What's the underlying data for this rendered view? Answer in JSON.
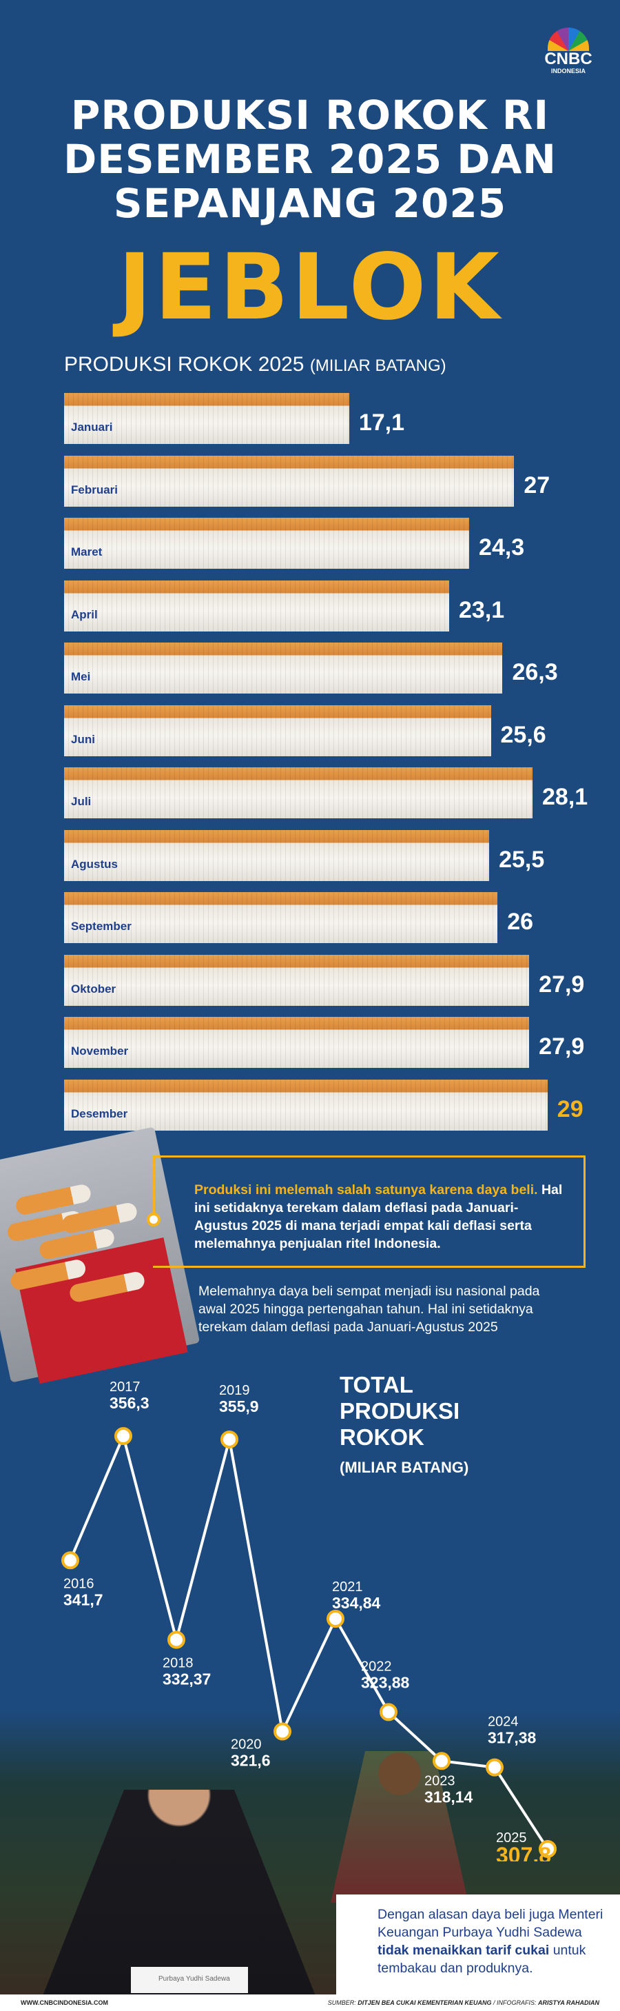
{
  "logo": {
    "brand": "CNBC",
    "sub": "INDONESIA"
  },
  "header": {
    "title_lines": [
      "PRODUKSI ROKOK RI",
      "DESEMBER 2025 DAN",
      "SEPANJANG 2025"
    ],
    "highlight": "JEBLOK"
  },
  "colors": {
    "background": "#1d4a7e",
    "accent": "#f5b41c",
    "text_blue": "#1f3f8a"
  },
  "chart_data": [
    {
      "type": "bar",
      "orientation": "horizontal",
      "title": "PRODUKSI ROKOK 2025",
      "unit": "(MILIAR BATANG)",
      "categories": [
        "Januari",
        "Februari",
        "Maret",
        "April",
        "Mei",
        "Juni",
        "Juli",
        "Agustus",
        "September",
        "Oktober",
        "November",
        "Desember"
      ],
      "values": [
        17.1,
        27,
        24.3,
        23.1,
        26.3,
        25.6,
        28.1,
        25.5,
        26,
        27.9,
        27.9,
        29
      ],
      "value_labels": [
        "17,1",
        "27",
        "24,3",
        "23,1",
        "26,3",
        "25,6",
        "28,1",
        "25,5",
        "26",
        "27,9",
        "27,9",
        "29"
      ],
      "highlight": "Desember"
    },
    {
      "type": "line",
      "title": "TOTAL PRODUKSI ROKOK",
      "unit": "(MILIAR BATANG)",
      "x": [
        "2016",
        "2017",
        "2018",
        "2019",
        "2020",
        "2021",
        "2022",
        "2023",
        "2024",
        "2025"
      ],
      "values": [
        341.7,
        356.3,
        332.37,
        355.9,
        321.6,
        334.84,
        323.88,
        318.14,
        317.38,
        307.8
      ],
      "value_labels": [
        "341,7",
        "356,3",
        "332,37",
        "355,9",
        "321,6",
        "334,84",
        "323,88",
        "318,14",
        "317,38",
        "307,8"
      ],
      "highlight": "2025"
    }
  ],
  "box1": {
    "highlight": "Produksi ini melemah salah satunya karena daya beli.",
    "text": " Hal ini setidaknya terekam dalam deflasi pada Januari-Agustus 2025 di mana terjadi empat kali deflasi serta melemahnya penjualan ritel Indonesia."
  },
  "box2": {
    "text": "Melemahnya daya beli sempat menjadi isu nasional pada awal 2025 hingga pertengahan tahun. Hal ini setidaknya terekam dalam deflasi pada Januari-Agustus 2025"
  },
  "bottom_note": {
    "pre": "Dengan alasan daya beli juga Menteri Keuangan Purbaya Yudhi Sadewa ",
    "bold": "tidak menaikkan tarif cukai",
    "post": " untuk tembakau dan produknya."
  },
  "nameplate": "Purbaya Yudhi Sadewa",
  "footer": {
    "site": "WWW.CNBCINDONESIA.COM",
    "source_label": "SUMBER: ",
    "source": "DITJEN BEA CUKAI KEMENTERIAN KEUANG",
    "infografis_label": " / INFOGRAFIS: ",
    "infografis": "ARISTYA RAHADIAN"
  }
}
